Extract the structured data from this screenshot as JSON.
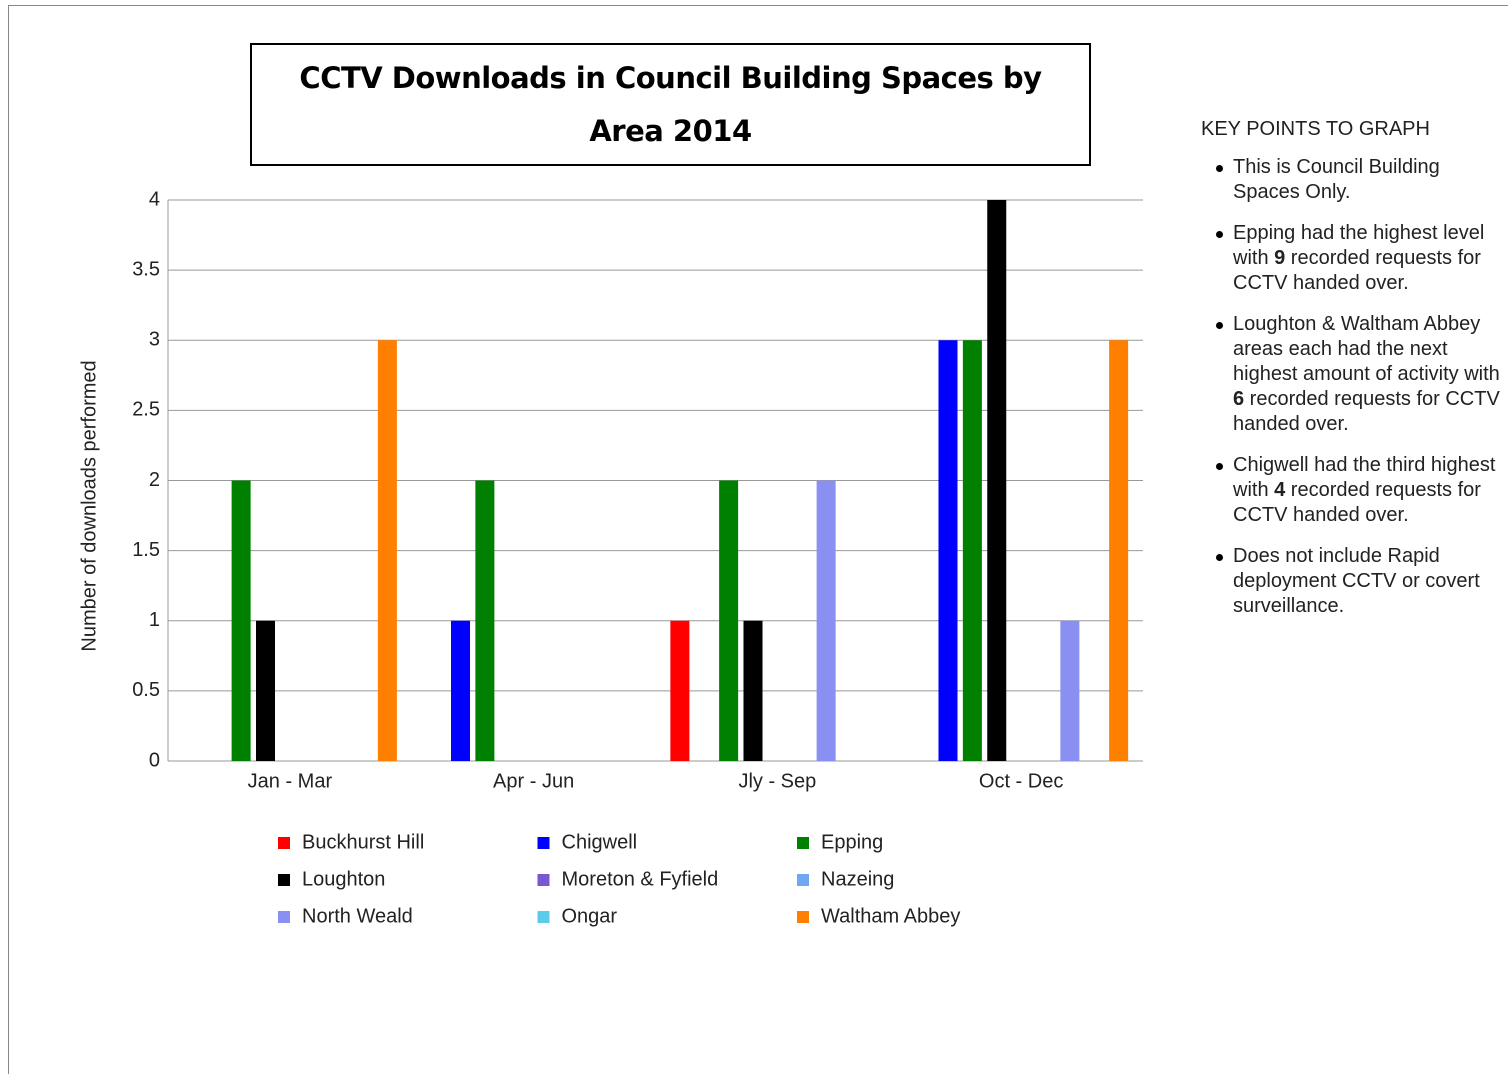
{
  "chart_data": {
    "type": "bar",
    "title": "CCTV Downloads in Council Building Spaces by Area 2014",
    "y_label": "Number of downloads performed",
    "categories": [
      "Jan - Mar",
      "Apr - Jun",
      "Jly - Sep",
      "Oct - Dec"
    ],
    "series": [
      {
        "name": "Buckhurst Hill",
        "color": "#ff0000",
        "values": [
          0,
          0,
          1,
          0
        ]
      },
      {
        "name": "Chigwell",
        "color": "#0000ff",
        "values": [
          0,
          1,
          0,
          3
        ]
      },
      {
        "name": "Epping",
        "color": "#008000",
        "values": [
          2,
          2,
          2,
          3
        ]
      },
      {
        "name": "Loughton",
        "color": "#000000",
        "values": [
          1,
          0,
          1,
          4
        ]
      },
      {
        "name": "Moreton & Fyfield",
        "color": "#7b55d6",
        "values": [
          0,
          0,
          0,
          0
        ]
      },
      {
        "name": "Nazeing",
        "color": "#6fa8f0",
        "values": [
          0,
          0,
          0,
          0
        ]
      },
      {
        "name": "North Weald",
        "color": "#8a90f2",
        "values": [
          0,
          0,
          2,
          1
        ]
      },
      {
        "name": "Ongar",
        "color": "#5ccbea",
        "values": [
          0,
          0,
          0,
          0
        ]
      },
      {
        "name": "Waltham Abbey",
        "color": "#ff8000",
        "values": [
          3,
          0,
          0,
          3
        ]
      }
    ],
    "ylim": [
      0,
      4
    ],
    "yticks": [
      0,
      0.5,
      1,
      1.5,
      2,
      2.5,
      3,
      3.5,
      4
    ],
    "grid": true,
    "legend": "bottom"
  },
  "key_points": {
    "title": "KEY POINTS TO GRAPH",
    "items": [
      [
        "This is Council Building Spaces Only."
      ],
      [
        "Epping had the highest level with ",
        "9",
        " recorded requests for CCTV handed over."
      ],
      [
        "Loughton & Waltham Abbey areas each had the next highest amount of activity with ",
        "6",
        " recorded requests for CCTV handed over."
      ],
      [
        "Chigwell had the third highest with ",
        "4",
        " recorded requests for CCTV handed over."
      ],
      [
        "Does not include Rapid deployment CCTV or covert surveillance."
      ]
    ]
  }
}
